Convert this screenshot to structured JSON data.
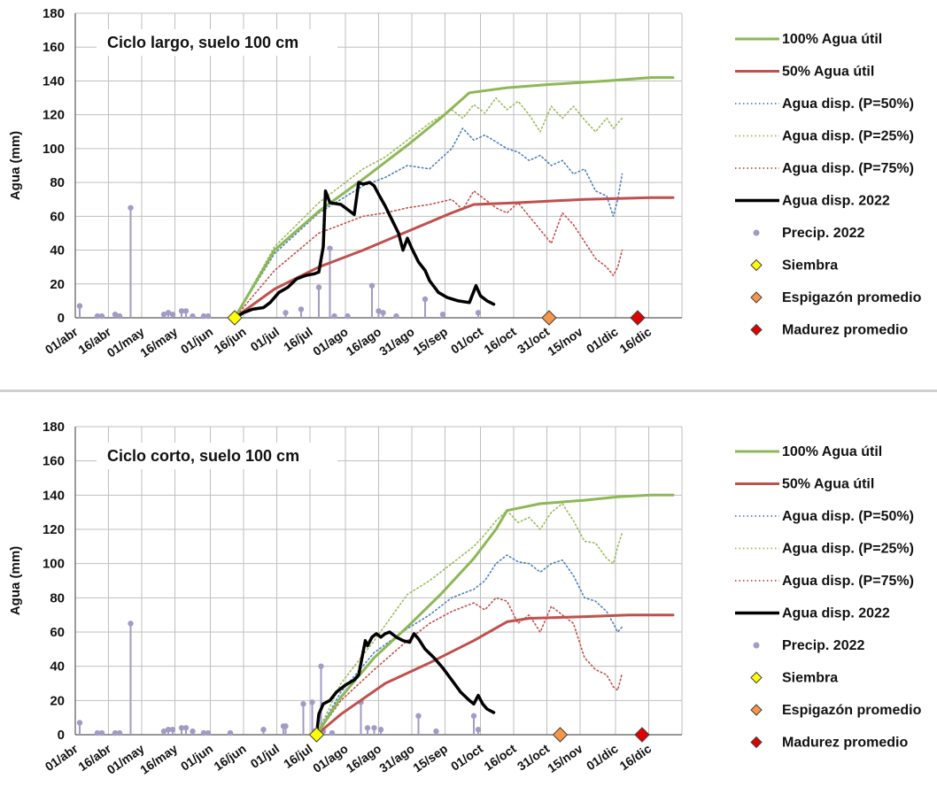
{
  "legend_labels": {
    "full": "100% Agua útil",
    "half": "50% Agua útil",
    "p50": "Agua disp. (P=50%)",
    "p25": "Agua disp. (P=25%)",
    "p75": "Agua disp. (P=75%)",
    "y2022": "Agua disp. 2022",
    "precip": "Precip. 2022",
    "siembra": "Siembra",
    "espigazon": "Espigazón promedio",
    "madurez": "Madurez promedio"
  },
  "colors": {
    "full": "#8DB855",
    "half": "#C0504D",
    "p50": "#4F81BD",
    "p25": "#9BBB59",
    "p75": "#C0504D",
    "y2022": "#000000",
    "precip": "#A29BC4",
    "siembra": "#FFFF00",
    "espigazon": "#F79646",
    "madurez": "#E00000",
    "grid": "#BFBFBF"
  },
  "chart_data": [
    {
      "type": "line",
      "title": "Ciclo largo, suelo 100 cm",
      "ylabel": "Agua (mm)",
      "xlabel": "",
      "ylim": [
        0,
        180
      ],
      "yticks": [
        0,
        20,
        40,
        60,
        80,
        100,
        120,
        140,
        160,
        180
      ],
      "x_start": "01/abr",
      "x_end": "31/dic",
      "xticks": [
        {
          "label": "01/abr",
          "day": 0
        },
        {
          "label": "16/abr",
          "day": 15
        },
        {
          "label": "01/may",
          "day": 30
        },
        {
          "label": "16/may",
          "day": 45
        },
        {
          "label": "01/jun",
          "day": 61
        },
        {
          "label": "16/jun",
          "day": 76
        },
        {
          "label": "01/jul",
          "day": 91
        },
        {
          "label": "16/jul",
          "day": 106
        },
        {
          "label": "01/ago",
          "day": 122
        },
        {
          "label": "16/ago",
          "day": 137
        },
        {
          "label": "31/ago",
          "day": 152
        },
        {
          "label": "15/sep",
          "day": 167
        },
        {
          "label": "01/oct",
          "day": 183
        },
        {
          "label": "16/oct",
          "day": 198
        },
        {
          "label": "31/oct",
          "day": 213
        },
        {
          "label": "15/nov",
          "day": 228
        },
        {
          "label": "01/dic",
          "day": 244
        },
        {
          "label": "16/dic",
          "day": 259
        }
      ],
      "grid": true,
      "legend_position": "right",
      "series": [
        {
          "key": "full",
          "name": "100% Agua útil",
          "style": "solid",
          "x": [
            72,
            90,
            110,
            130,
            150,
            165,
            178,
            195,
            215,
            240,
            260,
            270
          ],
          "y": [
            0,
            40,
            63,
            82,
            102,
            118,
            133,
            136,
            138,
            140,
            142,
            142
          ]
        },
        {
          "key": "half",
          "name": "50% Agua útil",
          "style": "solid",
          "x": [
            72,
            90,
            110,
            130,
            150,
            170,
            180,
            200,
            230,
            260,
            270
          ],
          "y": [
            0,
            17,
            30,
            40,
            51,
            62,
            67,
            68,
            70,
            71,
            71
          ]
        },
        {
          "key": "p50",
          "name": "Agua disp. (P=50%)",
          "style": "dotted",
          "x": [
            72,
            90,
            110,
            130,
            140,
            150,
            160,
            170,
            175,
            180,
            185,
            190,
            195,
            200,
            205,
            210,
            215,
            220,
            225,
            230,
            235,
            240,
            243,
            245,
            247
          ],
          "y": [
            0,
            38,
            62,
            78,
            83,
            90,
            88,
            100,
            112,
            105,
            108,
            104,
            100,
            98,
            93,
            96,
            90,
            93,
            85,
            88,
            75,
            72,
            60,
            70,
            85
          ]
        },
        {
          "key": "p25",
          "name": "Agua disp. (P=25%)",
          "style": "dotted",
          "x": [
            72,
            90,
            110,
            130,
            140,
            150,
            160,
            170,
            175,
            180,
            185,
            190,
            195,
            200,
            205,
            210,
            215,
            220,
            225,
            230,
            235,
            240,
            243,
            245,
            247
          ],
          "y": [
            0,
            42,
            68,
            88,
            95,
            105,
            115,
            123,
            118,
            126,
            121,
            130,
            123,
            128,
            120,
            110,
            125,
            118,
            125,
            117,
            110,
            118,
            112,
            115,
            118
          ]
        },
        {
          "key": "p75",
          "name": "Agua disp. (P=75%)",
          "style": "dotted",
          "x": [
            72,
            90,
            110,
            130,
            140,
            150,
            160,
            170,
            175,
            180,
            185,
            190,
            195,
            200,
            205,
            210,
            215,
            220,
            225,
            230,
            235,
            240,
            243,
            245,
            247
          ],
          "y": [
            0,
            28,
            50,
            60,
            62,
            65,
            67,
            70,
            64,
            75,
            70,
            65,
            62,
            68,
            60,
            52,
            44,
            62,
            55,
            45,
            35,
            30,
            25,
            30,
            40
          ]
        },
        {
          "key": "y2022",
          "name": "Agua disp. 2022",
          "style": "bold",
          "x": [
            72,
            76,
            80,
            85,
            88,
            92,
            96,
            100,
            104,
            108,
            110,
            112,
            113,
            115,
            120,
            126,
            128,
            130,
            133,
            135,
            137,
            140,
            143,
            146,
            148,
            150,
            152,
            155,
            158,
            160,
            164,
            168,
            173,
            178,
            181,
            183,
            186,
            189
          ],
          "y": [
            0,
            3,
            5,
            6,
            9,
            15,
            18,
            23,
            25,
            26,
            27,
            42,
            75,
            68,
            67,
            61,
            80,
            79,
            80,
            78,
            73,
            66,
            58,
            50,
            40,
            47,
            41,
            33,
            28,
            22,
            15,
            12,
            10,
            9,
            19,
            13,
            10,
            8
          ]
        }
      ],
      "precip": {
        "name": "Precip. 2022",
        "x": [
          2,
          10,
          12,
          18,
          20,
          25,
          40,
          42,
          44,
          48,
          50,
          53,
          58,
          60,
          95,
          102,
          110,
          115,
          117,
          123,
          134,
          137,
          139,
          145,
          158,
          166,
          182
        ],
        "y": [
          7,
          1,
          1,
          2,
          1,
          65,
          2,
          3,
          2,
          4,
          4,
          1,
          1,
          1,
          3,
          5,
          18,
          41,
          1,
          1,
          19,
          4,
          3,
          1,
          11,
          2,
          3
        ]
      },
      "markers": [
        {
          "key": "siembra",
          "name": "Siembra",
          "x": 72,
          "y": 0
        },
        {
          "key": "espigazon",
          "name": "Espigazón promedio",
          "x": 214,
          "y": 0
        },
        {
          "key": "madurez",
          "name": "Madurez promedio",
          "x": 254,
          "y": 0
        }
      ]
    },
    {
      "type": "line",
      "title": "Ciclo corto, suelo 100 cm",
      "ylabel": "Agua (mm)",
      "xlabel": "",
      "ylim": [
        0,
        180
      ],
      "yticks": [
        0,
        20,
        40,
        60,
        80,
        100,
        120,
        140,
        160,
        180
      ],
      "x_start": "01/abr",
      "x_end": "31/dic",
      "xticks": [
        {
          "label": "01/abr",
          "day": 0
        },
        {
          "label": "16/abr",
          "day": 15
        },
        {
          "label": "01/may",
          "day": 30
        },
        {
          "label": "16/may",
          "day": 45
        },
        {
          "label": "01/jun",
          "day": 61
        },
        {
          "label": "16/jun",
          "day": 76
        },
        {
          "label": "01/jul",
          "day": 91
        },
        {
          "label": "16/jul",
          "day": 106
        },
        {
          "label": "01/ago",
          "day": 122
        },
        {
          "label": "16/ago",
          "day": 137
        },
        {
          "label": "31/ago",
          "day": 152
        },
        {
          "label": "15/sep",
          "day": 167
        },
        {
          "label": "01/oct",
          "day": 183
        },
        {
          "label": "16/oct",
          "day": 198
        },
        {
          "label": "31/oct",
          "day": 213
        },
        {
          "label": "15/nov",
          "day": 228
        },
        {
          "label": "01/dic",
          "day": 244
        },
        {
          "label": "16/dic",
          "day": 259
        }
      ],
      "grid": true,
      "legend_position": "right",
      "series": [
        {
          "key": "full",
          "name": "100% Agua útil",
          "style": "solid",
          "x": [
            109,
            120,
            135,
            150,
            165,
            180,
            190,
            195,
            210,
            230,
            245,
            260,
            270
          ],
          "y": [
            0,
            22,
            45,
            63,
            82,
            103,
            120,
            131,
            135,
            137,
            139,
            140,
            140
          ]
        },
        {
          "key": "half",
          "name": "50% Agua útil",
          "style": "solid",
          "x": [
            109,
            120,
            140,
            160,
            180,
            195,
            205,
            230,
            250,
            270
          ],
          "y": [
            0,
            12,
            30,
            42,
            55,
            66,
            68,
            69,
            70,
            70
          ]
        },
        {
          "key": "p50",
          "name": "Agua disp. (P=50%)",
          "style": "dotted",
          "x": [
            109,
            120,
            135,
            150,
            160,
            170,
            180,
            185,
            190,
            195,
            200,
            205,
            210,
            215,
            220,
            225,
            230,
            235,
            240,
            243,
            245,
            247
          ],
          "y": [
            0,
            25,
            48,
            62,
            70,
            80,
            85,
            90,
            100,
            105,
            101,
            100,
            95,
            100,
            102,
            93,
            80,
            78,
            72,
            65,
            60,
            63
          ]
        },
        {
          "key": "p25",
          "name": "Agua disp. (P=25%)",
          "style": "dotted",
          "x": [
            109,
            120,
            135,
            150,
            160,
            170,
            180,
            185,
            190,
            195,
            200,
            205,
            210,
            215,
            220,
            225,
            230,
            235,
            240,
            243,
            245,
            247
          ],
          "y": [
            0,
            30,
            55,
            82,
            90,
            100,
            110,
            117,
            125,
            131,
            124,
            127,
            120,
            130,
            135,
            125,
            113,
            112,
            103,
            100,
            110,
            118
          ]
        },
        {
          "key": "p75",
          "name": "Agua disp. (P=75%)",
          "style": "dotted",
          "x": [
            109,
            120,
            135,
            150,
            160,
            170,
            180,
            185,
            190,
            195,
            200,
            205,
            210,
            215,
            220,
            225,
            230,
            235,
            240,
            243,
            245,
            247
          ],
          "y": [
            0,
            20,
            38,
            55,
            65,
            72,
            77,
            73,
            80,
            78,
            65,
            70,
            60,
            75,
            70,
            65,
            45,
            38,
            35,
            28,
            26,
            36
          ]
        },
        {
          "key": "y2022",
          "name": "Agua disp. 2022",
          "style": "bold",
          "x": [
            109,
            110,
            112,
            115,
            118,
            122,
            126,
            128,
            131,
            132,
            134,
            136,
            138,
            140,
            142,
            145,
            148,
            151,
            153,
            155,
            158,
            162,
            166,
            170,
            174,
            178,
            180,
            182,
            184,
            186,
            189
          ],
          "y": [
            0,
            12,
            18,
            20,
            25,
            29,
            32,
            35,
            55,
            52,
            57,
            59,
            57,
            59,
            60,
            57,
            55,
            54,
            59,
            56,
            50,
            45,
            39,
            32,
            25,
            20,
            18,
            23,
            18,
            15,
            13
          ]
        }
      ],
      "precip": {
        "name": "Precip. 2022",
        "x": [
          2,
          10,
          12,
          18,
          20,
          25,
          40,
          42,
          44,
          48,
          50,
          53,
          58,
          60,
          70,
          85,
          94,
          95,
          103,
          107,
          108,
          111,
          112,
          116,
          129,
          132,
          135,
          138,
          155,
          163,
          180,
          182
        ],
        "y": [
          7,
          1,
          1,
          1,
          1,
          65,
          2,
          3,
          3,
          4,
          4,
          2,
          1,
          1,
          1,
          3,
          5,
          5,
          18,
          19,
          2,
          40,
          2,
          1,
          19,
          4,
          4,
          3,
          11,
          2,
          11,
          3
        ]
      },
      "markers": [
        {
          "key": "siembra",
          "name": "Siembra",
          "x": 109,
          "y": 0
        },
        {
          "key": "espigazon",
          "name": "Espigazón promedio",
          "x": 219,
          "y": 0
        },
        {
          "key": "madurez",
          "name": "Madurez promedio",
          "x": 256,
          "y": 0
        }
      ]
    }
  ]
}
